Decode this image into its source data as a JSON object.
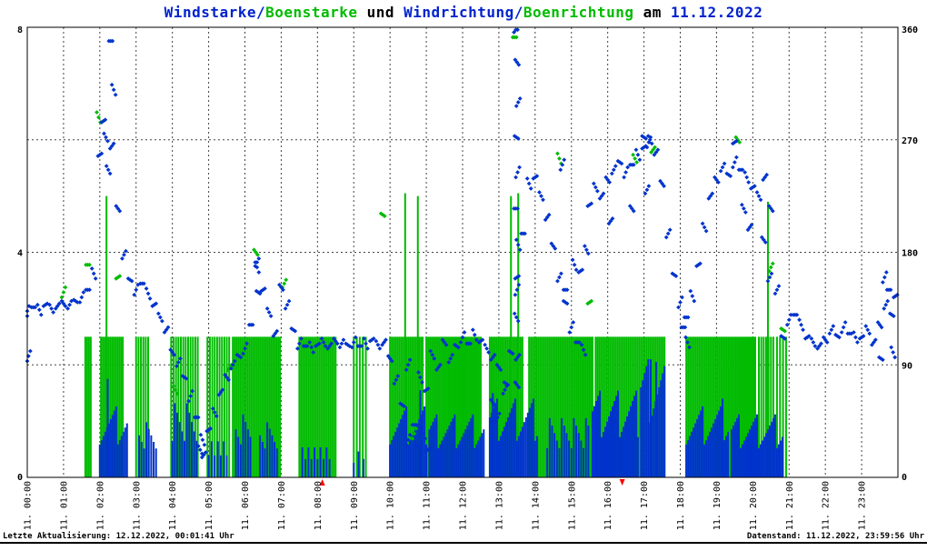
{
  "title": {
    "parts": [
      {
        "text": "Windstarke/",
        "color": "blue"
      },
      {
        "text": "Boenstarke",
        "color": "green"
      },
      {
        "text": " und ",
        "color": "black"
      },
      {
        "text": "Windrichtung/",
        "color": "blue"
      },
      {
        "text": "Boenrichtung",
        "color": "green"
      },
      {
        "text": " am ",
        "color": "black"
      },
      {
        "text": "11.12.2022",
        "color": "blue"
      }
    ]
  },
  "footer": {
    "left": "Letzte Aktualisierung: 12.12.2022, 00:01:41 Uhr",
    "right": "Datenstand: 11.12.2022, 23:59:56 Uhr"
  },
  "colors": {
    "blue": "#0033cc",
    "green": "#00bb00",
    "black": "#000000",
    "red": "#ff0000",
    "grid": "#444444"
  },
  "chart_data": {
    "type": "scatter",
    "title": "Windstarke/Boenstarke und Windrichtung/Boenrichtung am 11.12.2022",
    "date": "11.12.2022",
    "grid": "dashed hourly vertical, dashed horizontal at 90/180/270 deg",
    "x_axis": {
      "unit": "time",
      "range_minutes": [
        0,
        1440
      ],
      "tick_interval_minutes": 60,
      "tick_labels": [
        "11. 00:00",
        "11. 01:00",
        "11. 02:00",
        "11. 03:00",
        "11. 04:00",
        "11. 05:00",
        "11. 06:00",
        "11. 07:00",
        "11. 08:00",
        "11. 09:00",
        "11. 10:00",
        "11. 11:00",
        "11. 12:00",
        "11. 13:00",
        "11. 14:00",
        "11. 15:00",
        "11. 16:00",
        "11. 17:00",
        "11. 18:00",
        "11. 19:00",
        "11. 20:00",
        "11. 21:00",
        "11. 22:00",
        "11. 23:00"
      ]
    },
    "left_axis": {
      "name": "Windstarke/Boenstarke",
      "range": [
        0,
        8
      ],
      "ticks": [
        8,
        4,
        0
      ]
    },
    "right_axis": {
      "name": "Windrichtung/Boenrichtung",
      "unit": "deg",
      "range": [
        0,
        360
      ],
      "ticks": [
        360,
        270,
        180,
        90,
        0
      ],
      "grid_values": [
        90,
        180,
        270
      ]
    },
    "sun_markers_minutes": [
      488,
      984
    ],
    "wind_direction": {
      "style": "dots",
      "color": "blue",
      "axis": "right",
      "points": [
        [
          0,
          133
        ],
        [
          10,
          136
        ],
        [
          20,
          134
        ],
        [
          30,
          138
        ],
        [
          40,
          135
        ],
        [
          50,
          137
        ],
        [
          60,
          139
        ],
        [
          70,
          138
        ],
        [
          80,
          141
        ],
        [
          90,
          144
        ],
        [
          100,
          150
        ],
        [
          110,
          163
        ],
        [
          120,
          258
        ],
        [
          130,
          272
        ],
        [
          140,
          265
        ],
        [
          150,
          215
        ],
        [
          160,
          178
        ],
        [
          170,
          158
        ],
        [
          180,
          150
        ],
        [
          190,
          155
        ],
        [
          200,
          147
        ],
        [
          210,
          138
        ],
        [
          220,
          128
        ],
        [
          230,
          118
        ],
        [
          240,
          100
        ],
        [
          250,
          92
        ],
        [
          260,
          80
        ],
        [
          270,
          65
        ],
        [
          280,
          48
        ],
        [
          290,
          30
        ],
        [
          300,
          38
        ],
        [
          310,
          52
        ],
        [
          320,
          68
        ],
        [
          330,
          80
        ],
        [
          340,
          90
        ],
        [
          350,
          97
        ],
        [
          360,
          103
        ],
        [
          370,
          122
        ],
        [
          380,
          168
        ],
        [
          390,
          150
        ],
        [
          400,
          132
        ],
        [
          410,
          115
        ],
        [
          420,
          152
        ],
        [
          430,
          138
        ],
        [
          440,
          118
        ],
        [
          450,
          107
        ],
        [
          460,
          105
        ],
        [
          470,
          104
        ],
        [
          480,
          106
        ],
        [
          490,
          108
        ],
        [
          500,
          105
        ],
        [
          510,
          109
        ],
        [
          520,
          107
        ],
        [
          530,
          106
        ],
        [
          540,
          108
        ],
        [
          550,
          105
        ],
        [
          560,
          107
        ],
        [
          570,
          110
        ],
        [
          580,
          106
        ],
        [
          590,
          108
        ],
        [
          600,
          95
        ],
        [
          610,
          78
        ],
        [
          620,
          58
        ],
        [
          630,
          90
        ],
        [
          640,
          42
        ],
        [
          650,
          80
        ],
        [
          660,
          70
        ],
        [
          670,
          98
        ],
        [
          680,
          88
        ],
        [
          690,
          108
        ],
        [
          700,
          95
        ],
        [
          710,
          105
        ],
        [
          720,
          112
        ],
        [
          730,
          107
        ],
        [
          740,
          114
        ],
        [
          750,
          109
        ],
        [
          760,
          103
        ],
        [
          770,
          96
        ],
        [
          780,
          88
        ],
        [
          790,
          70
        ],
        [
          800,
          100
        ],
        [
          810,
          150
        ],
        [
          820,
          195
        ],
        [
          830,
          235
        ],
        [
          840,
          240
        ],
        [
          850,
          225
        ],
        [
          860,
          208
        ],
        [
          870,
          185
        ],
        [
          880,
          160
        ],
        [
          890,
          140
        ],
        [
          900,
          120
        ],
        [
          910,
          108
        ],
        [
          920,
          102
        ],
        [
          930,
          218
        ],
        [
          940,
          232
        ],
        [
          950,
          225
        ],
        [
          960,
          238
        ],
        [
          970,
          246
        ],
        [
          980,
          252
        ],
        [
          990,
          244
        ],
        [
          1000,
          250
        ],
        [
          1010,
          258
        ],
        [
          1020,
          264
        ],
        [
          1030,
          270
        ],
        [
          1040,
          260
        ],
        [
          1050,
          235
        ],
        [
          1060,
          195
        ],
        [
          1070,
          162
        ],
        [
          1080,
          140
        ],
        [
          1090,
          128
        ],
        [
          1100,
          145
        ],
        [
          1110,
          170
        ],
        [
          1120,
          200
        ],
        [
          1130,
          225
        ],
        [
          1140,
          238
        ],
        [
          1150,
          248
        ],
        [
          1160,
          242
        ],
        [
          1170,
          252
        ],
        [
          1180,
          246
        ],
        [
          1190,
          240
        ],
        [
          1200,
          232
        ],
        [
          1210,
          225
        ],
        [
          1220,
          240
        ],
        [
          1230,
          215
        ],
        [
          1240,
          150
        ],
        [
          1250,
          112
        ],
        [
          1260,
          126
        ],
        [
          1270,
          130
        ],
        [
          1280,
          122
        ],
        [
          1290,
          112
        ],
        [
          1300,
          108
        ],
        [
          1310,
          105
        ],
        [
          1320,
          110
        ],
        [
          1330,
          118
        ],
        [
          1340,
          113
        ],
        [
          1350,
          120
        ],
        [
          1360,
          115
        ],
        [
          1370,
          112
        ],
        [
          1380,
          112
        ],
        [
          1390,
          118
        ],
        [
          1400,
          108
        ],
        [
          1410,
          122
        ],
        [
          1420,
          138
        ],
        [
          1430,
          130
        ],
        [
          2,
          97
        ],
        [
          138,
          349
        ],
        [
          143,
          310
        ],
        [
          126,
          285
        ],
        [
          134,
          246
        ],
        [
          808,
          358
        ],
        [
          810,
          332
        ],
        [
          812,
          300
        ],
        [
          809,
          272
        ],
        [
          811,
          244
        ],
        [
          808,
          215
        ],
        [
          812,
          186
        ],
        [
          810,
          160
        ],
        [
          809,
          128
        ],
        [
          811,
          96
        ],
        [
          810,
          74
        ],
        [
          380,
          172
        ],
        [
          382,
          148
        ],
        [
          630,
          30
        ],
        [
          648,
          25
        ],
        [
          655,
          35
        ],
        [
          662,
          22
        ],
        [
          286,
          22
        ],
        [
          292,
          18
        ],
        [
          770,
          60
        ],
        [
          778,
          48
        ],
        [
          792,
          75
        ],
        [
          885,
          250
        ],
        [
          890,
          150
        ],
        [
          905,
          170
        ],
        [
          915,
          165
        ],
        [
          925,
          182
        ],
        [
          965,
          205
        ],
        [
          1000,
          215
        ],
        [
          1025,
          230
        ],
        [
          1020,
          272
        ],
        [
          1028,
          268
        ],
        [
          1085,
          120
        ],
        [
          1092,
          108
        ],
        [
          1170,
          268
        ],
        [
          1185,
          215
        ],
        [
          1195,
          200
        ],
        [
          1218,
          190
        ],
        [
          1228,
          160
        ],
        [
          1412,
          95
        ],
        [
          1418,
          160
        ],
        [
          1425,
          150
        ],
        [
          1432,
          100
        ],
        [
          1436,
          145
        ]
      ]
    },
    "gust_direction": {
      "style": "dots",
      "color": "green",
      "axis": "right",
      "points": [
        [
          60,
          148
        ],
        [
          100,
          170
        ],
        [
          118,
          288
        ],
        [
          150,
          160
        ],
        [
          245,
          70
        ],
        [
          335,
          88
        ],
        [
          378,
          180
        ],
        [
          425,
          155
        ],
        [
          588,
          210
        ],
        [
          640,
          35
        ],
        [
          806,
          352
        ],
        [
          880,
          255
        ],
        [
          930,
          140
        ],
        [
          1005,
          255
        ],
        [
          1035,
          262
        ],
        [
          1175,
          270
        ],
        [
          1230,
          168
        ],
        [
          1250,
          118
        ]
      ]
    },
    "gust_strength": {
      "style": "impulses",
      "color": "green",
      "axis": "left",
      "typical_height": 2.5,
      "bursts": [
        [
          96,
          106,
          3,
          2.5
        ],
        [
          122,
          160,
          3,
          2.5
        ],
        [
          180,
          200,
          4,
          2.5
        ],
        [
          238,
          282,
          4,
          2.5
        ],
        [
          298,
          335,
          4,
          2.5
        ],
        [
          340,
          420,
          3,
          2.5
        ],
        [
          450,
          512,
          3,
          2.5
        ],
        [
          540,
          560,
          5,
          2.5
        ],
        [
          600,
          655,
          3,
          2.5
        ],
        [
          660,
          750,
          3,
          2.5
        ],
        [
          765,
          820,
          3,
          2.5
        ],
        [
          830,
          935,
          3,
          2.5
        ],
        [
          940,
          1055,
          3,
          2.5
        ],
        [
          1090,
          1205,
          3,
          2.5
        ],
        [
          1210,
          1235,
          4,
          2.5
        ],
        [
          1240,
          1255,
          5,
          2.5
        ]
      ],
      "peaks": [
        [
          131,
          5.0
        ],
        [
          625,
          5.05
        ],
        [
          646,
          5.0
        ],
        [
          800,
          5.0
        ],
        [
          812,
          5.05
        ],
        [
          1225,
          4.9
        ]
      ]
    },
    "wind_strength": {
      "style": "impulses",
      "color": "blue",
      "axis": "left",
      "bursts": [
        [
          120,
          165,
          3,
          0.9
        ],
        [
          185,
          215,
          4,
          0.7
        ],
        [
          240,
          280,
          4,
          1.0
        ],
        [
          300,
          330,
          5,
          0.6
        ],
        [
          345,
          370,
          4,
          0.8
        ],
        [
          385,
          415,
          4,
          0.7
        ],
        [
          455,
          500,
          5,
          0.5
        ],
        [
          540,
          560,
          8,
          0.4
        ],
        [
          600,
          660,
          3,
          0.9
        ],
        [
          665,
          755,
          3,
          0.8
        ],
        [
          765,
          845,
          3,
          1.0
        ],
        [
          860,
          930,
          4,
          0.8
        ],
        [
          935,
          1010,
          3,
          1.1
        ],
        [
          1015,
          1055,
          3,
          1.5
        ],
        [
          1090,
          1160,
          3,
          0.9
        ],
        [
          1165,
          1250,
          3,
          0.8
        ]
      ],
      "peaks": [
        [
          133,
          1.75
        ],
        [
          650,
          1.55
        ],
        [
          770,
          1.5
        ],
        [
          1031,
          2.1
        ],
        [
          1040,
          2.05
        ],
        [
          1150,
          1.4
        ]
      ]
    }
  }
}
